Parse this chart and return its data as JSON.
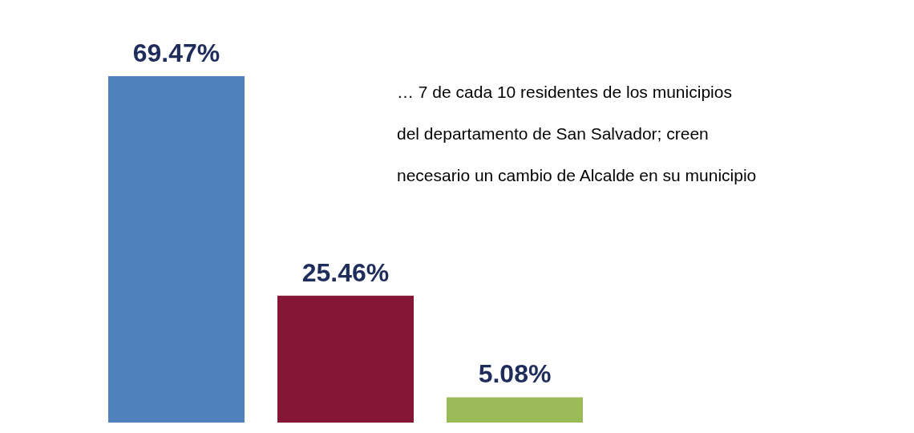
{
  "chart_data": {
    "type": "bar",
    "categories": [
      null,
      null,
      null
    ],
    "values": [
      69.47,
      25.46,
      5.08
    ],
    "colors": [
      "#4f81bd",
      "#861636",
      "#9bbb59"
    ],
    "value_labels": [
      "69.47%",
      "25.46%",
      "5.08%"
    ],
    "annotations": [
      "… 7 de cada 10 residentes de los municipios del departamento de San Salvador; creen necesario un cambio de Alcalde en su municipio"
    ],
    "data_labels": false
  }
}
